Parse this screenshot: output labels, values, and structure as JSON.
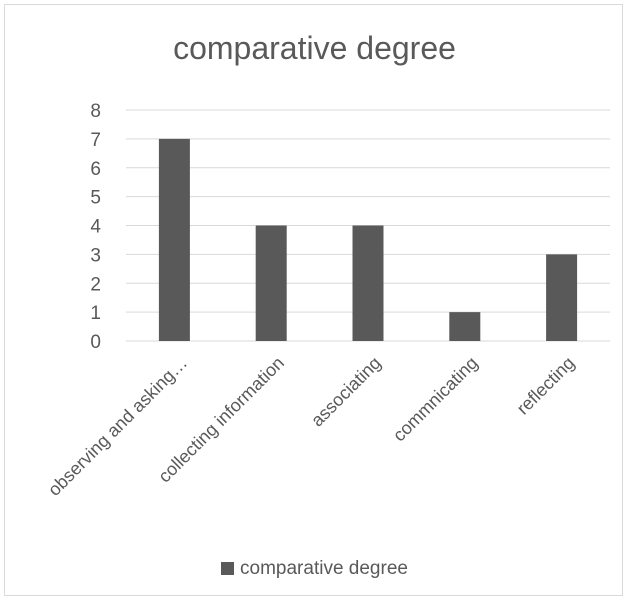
{
  "chart_data": {
    "type": "bar",
    "title": "comparative degree",
    "categories": [
      "observing and asking…",
      "collecting information",
      "associating",
      "commnicating",
      "reflecting"
    ],
    "series": [
      {
        "name": "comparative degree",
        "values": [
          7,
          4,
          4,
          1,
          3
        ],
        "color": "#595959"
      }
    ],
    "ylim": [
      0,
      8
    ],
    "yticks": [
      0,
      1,
      2,
      3,
      4,
      5,
      6,
      7,
      8
    ],
    "grid": true,
    "legend": "bottom",
    "xlabel": "",
    "ylabel": ""
  }
}
